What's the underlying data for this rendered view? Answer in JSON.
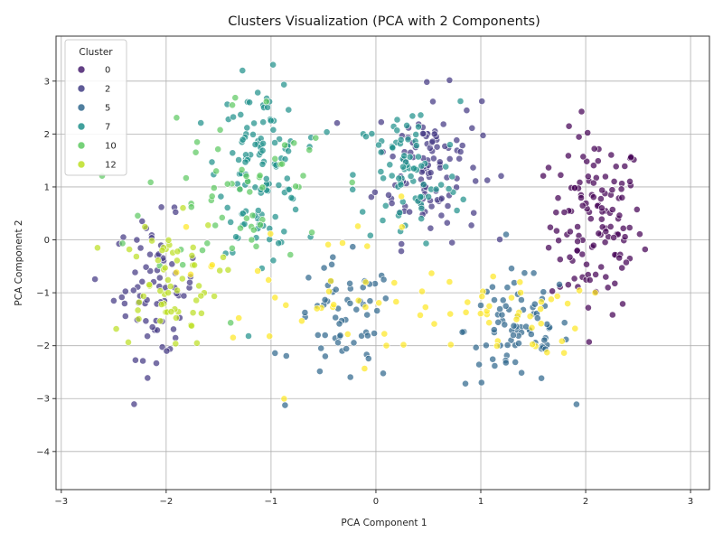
{
  "chart_data": {
    "type": "scatter",
    "title": "Clusters Visualization (PCA with 2 Components)",
    "xlabel": "PCA Component 1",
    "ylabel": "PCA Component 2",
    "xlim": [
      -3.05,
      3.18
    ],
    "ylim": [
      -4.72,
      3.85
    ],
    "x_ticks": [
      -3,
      -2,
      -1,
      0,
      1,
      2,
      3
    ],
    "y_ticks": [
      -4,
      -3,
      -2,
      -1,
      0,
      1,
      2,
      3
    ],
    "grid": true,
    "legend": {
      "title": "Cluster",
      "placement": "top-left",
      "entries": [
        {
          "label": "0",
          "color": "#481f70"
        },
        {
          "label": "2",
          "color": "#433e85"
        },
        {
          "label": "5",
          "color": "#31688e"
        },
        {
          "label": "7",
          "color": "#21918c"
        },
        {
          "label": "10",
          "color": "#5ec962"
        },
        {
          "label": "12",
          "color": "#bddf26"
        }
      ]
    },
    "clusters": [
      {
        "cluster": 0,
        "color": "#440154",
        "center": [
          2.1,
          0.3
        ],
        "spread": [
          0.22,
          0.85
        ],
        "count": 130
      },
      {
        "cluster": 2,
        "color": "#443983",
        "center": [
          0.5,
          1.4
        ],
        "spread": [
          0.25,
          0.7
        ],
        "count": 110
      },
      {
        "cluster": 2,
        "color": "#443983",
        "center": [
          -2.1,
          -0.9
        ],
        "spread": [
          0.2,
          0.65
        ],
        "count": 70
      },
      {
        "cluster": 5,
        "color": "#31688e",
        "center": [
          1.35,
          -1.7
        ],
        "spread": [
          0.25,
          0.55
        ],
        "count": 80
      },
      {
        "cluster": 5,
        "color": "#31688e",
        "center": [
          -0.3,
          -1.6
        ],
        "spread": [
          0.25,
          0.6
        ],
        "count": 60
      },
      {
        "cluster": 7,
        "color": "#21918c",
        "center": [
          -1.1,
          1.4
        ],
        "spread": [
          0.2,
          0.8
        ],
        "count": 120
      },
      {
        "cluster": 7,
        "color": "#21918c",
        "center": [
          0.3,
          1.2
        ],
        "spread": [
          0.25,
          0.7
        ],
        "count": 80
      },
      {
        "cluster": 10,
        "color": "#5ec962",
        "center": [
          -1.3,
          1.0
        ],
        "spread": [
          0.45,
          0.9
        ],
        "count": 60
      },
      {
        "cluster": 12,
        "color": "#bddf26",
        "center": [
          -2.0,
          -0.8
        ],
        "spread": [
          0.25,
          0.6
        ],
        "count": 60
      },
      {
        "cluster": 13,
        "color": "#fde725",
        "center": [
          1.2,
          -1.4
        ],
        "spread": [
          0.4,
          0.4
        ],
        "count": 40
      },
      {
        "cluster": 13,
        "color": "#fde725",
        "center": [
          -0.6,
          -1.0
        ],
        "spread": [
          0.6,
          0.9
        ],
        "count": 40
      }
    ]
  }
}
